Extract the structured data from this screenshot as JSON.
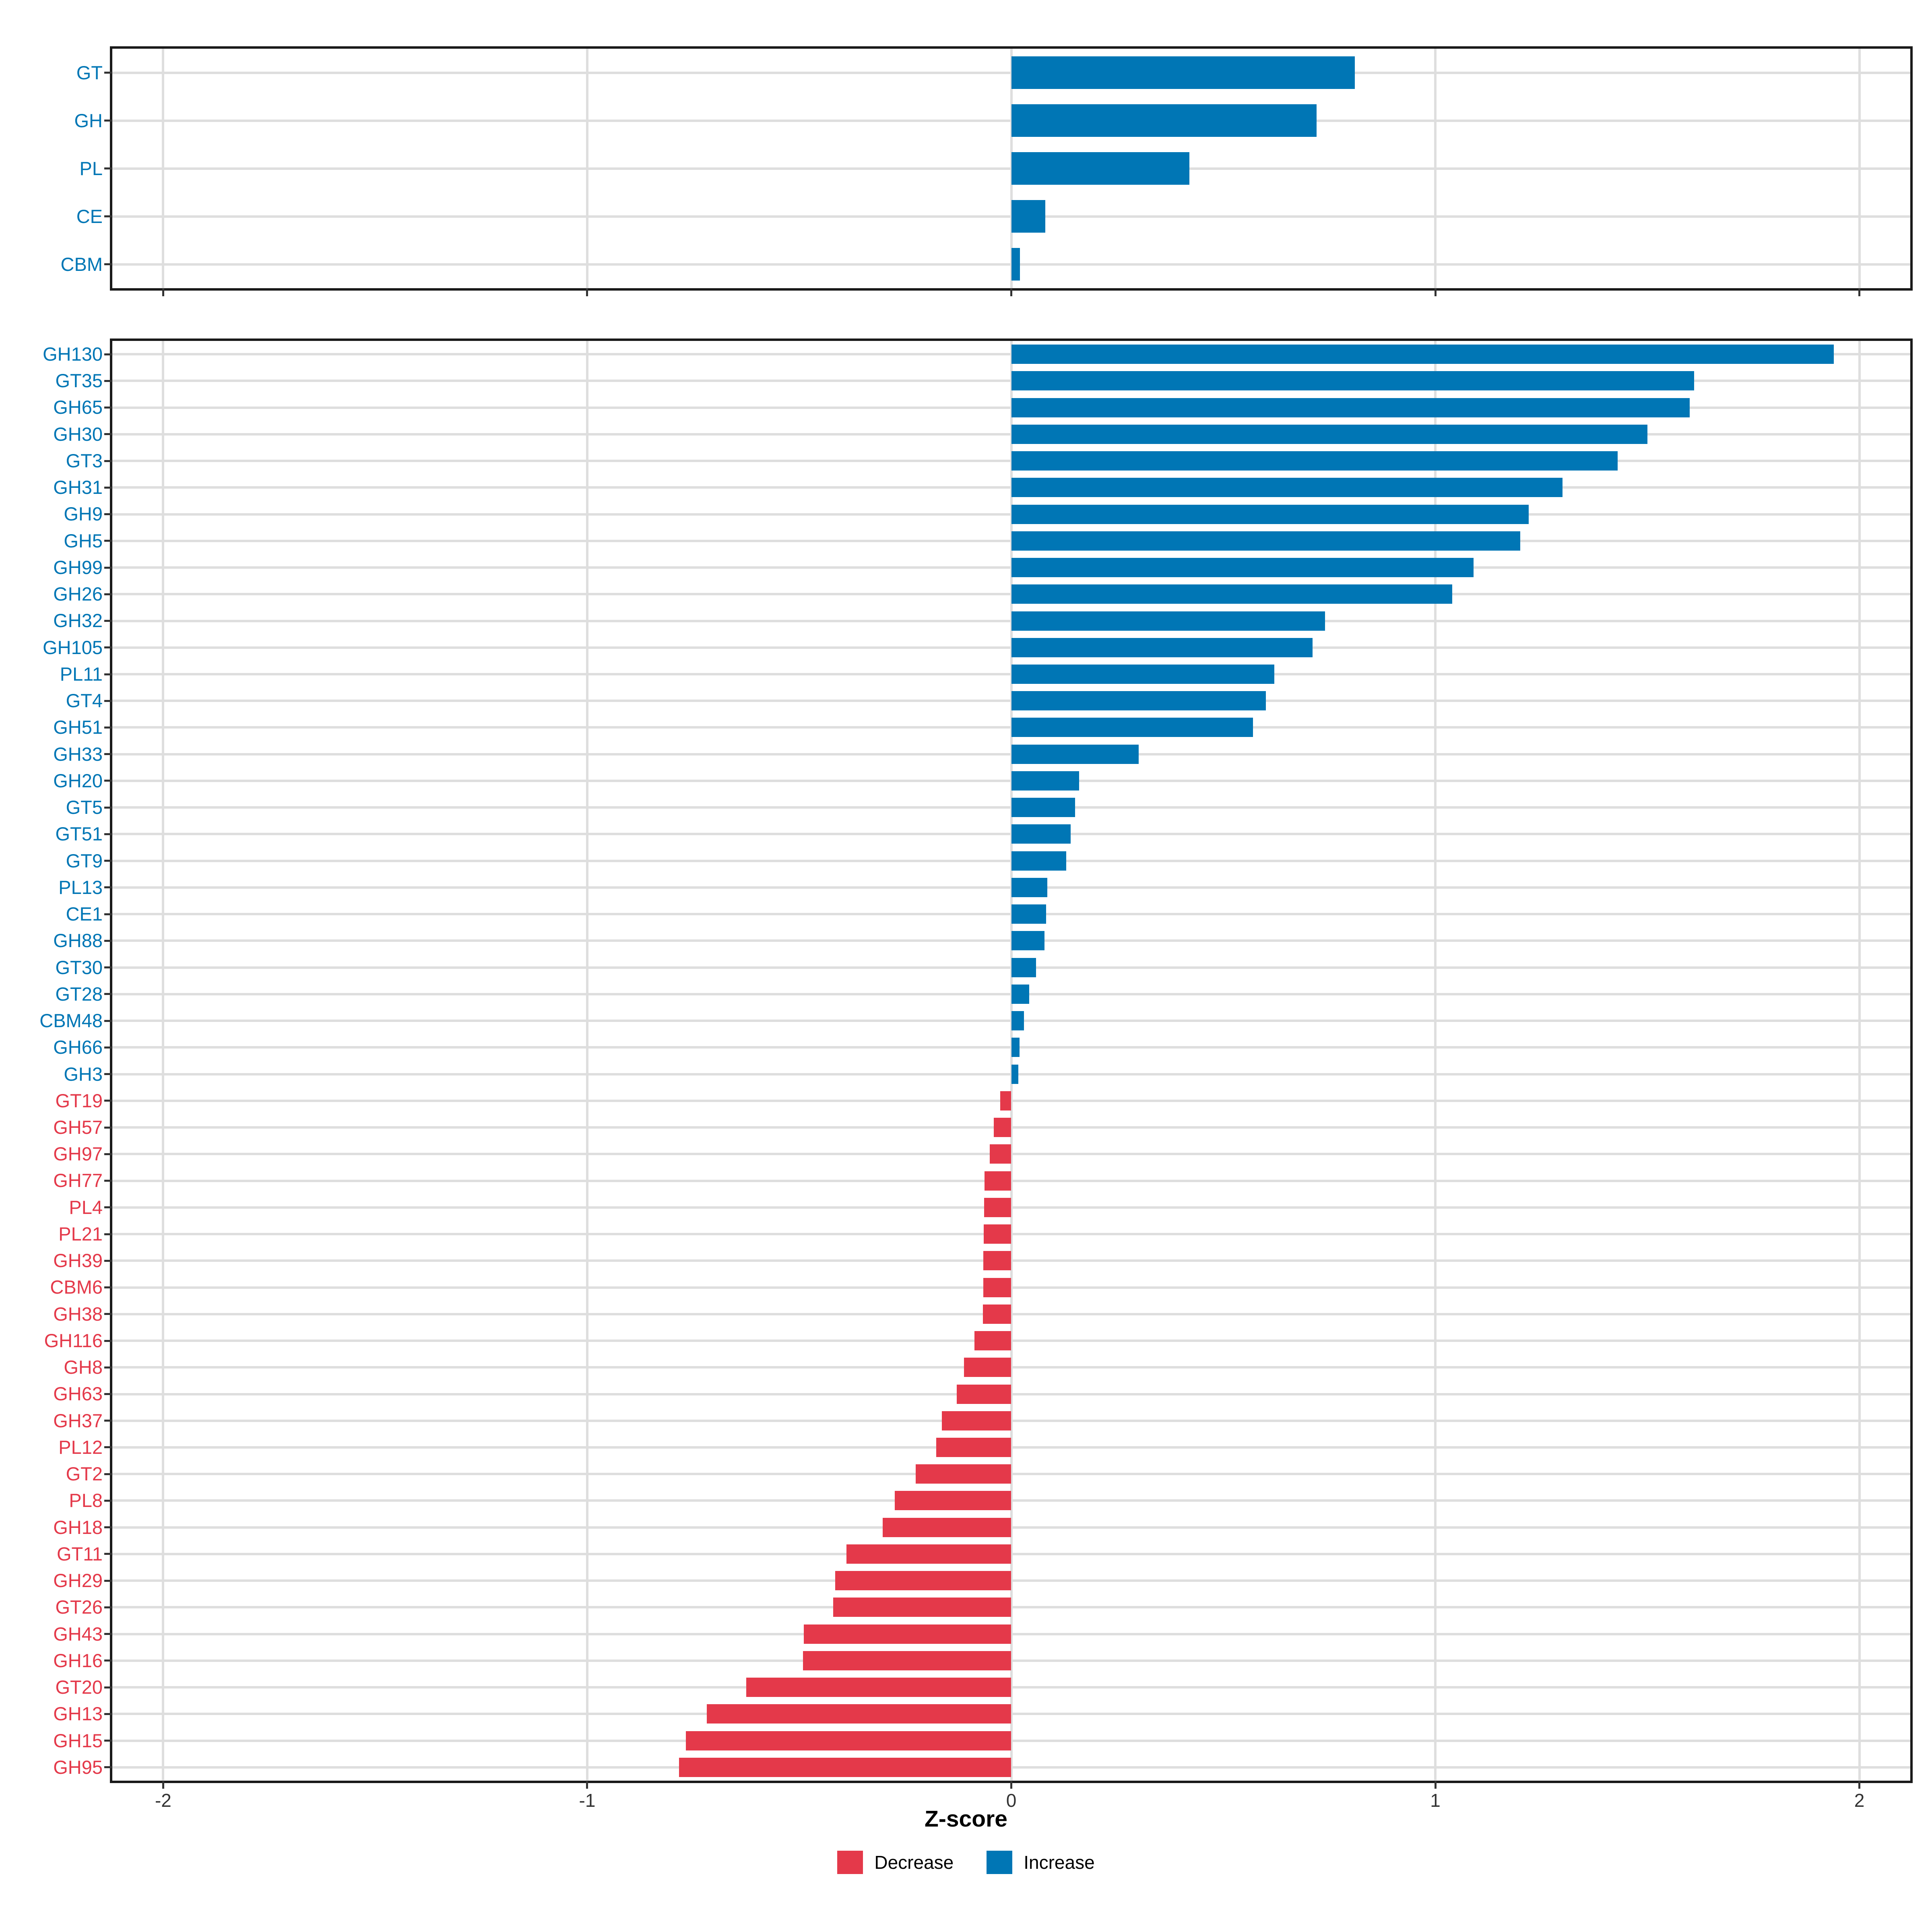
{
  "x_axis": {
    "title": "Z-score",
    "ticks": [
      -2,
      -1,
      0,
      1,
      2
    ],
    "tick_labels": [
      "-2",
      "-1",
      "0",
      "1",
      "2"
    ],
    "range": [
      -2.12,
      2.12
    ]
  },
  "legend": {
    "items": [
      {
        "label": "Decrease",
        "color_key": "decrease"
      },
      {
        "label": "Increase",
        "color_key": "increase"
      }
    ]
  },
  "colors": {
    "increase": "#0076B5",
    "decrease": "#E4394A",
    "grid": "#DEDEDE",
    "tick": "#333333",
    "tick_label": "#333333",
    "border": "#1A1A1A"
  },
  "chart_data": [
    {
      "id": "level",
      "type": "bar",
      "orientation": "horizontal",
      "categories": [
        "GT",
        "GH",
        "PL",
        "CE",
        "CBM"
      ],
      "values": [
        0.81,
        0.72,
        0.42,
        0.08,
        0.02
      ],
      "xlim": [
        -2.12,
        2.12
      ],
      "grid": true,
      "x_tick_labels_visible": false
    },
    {
      "id": "family",
      "type": "bar",
      "orientation": "horizontal",
      "categories": [
        "GH130",
        "GT35",
        "GH65",
        "GH30",
        "GT3",
        "GH31",
        "GH9",
        "GH5",
        "GH99",
        "GH26",
        "GH32",
        "GH105",
        "PL11",
        "GT4",
        "GH51",
        "GH33",
        "GH20",
        "GT5",
        "GT51",
        "GT9",
        "PL13",
        "CE1",
        "GH88",
        "GT30",
        "GT28",
        "CBM48",
        "GH66",
        "GH3",
        "GT19",
        "GH57",
        "GH97",
        "GH77",
        "PL4",
        "PL21",
        "GH39",
        "CBM6",
        "GH38",
        "GH116",
        "GH8",
        "GH63",
        "GH37",
        "PL12",
        "GT2",
        "PL8",
        "GH18",
        "GT11",
        "GH29",
        "GT26",
        "GH43",
        "GH16",
        "GT20",
        "GH13",
        "GH15",
        "GH95"
      ],
      "values": [
        1.94,
        1.61,
        1.6,
        1.5,
        1.43,
        1.3,
        1.22,
        1.2,
        1.09,
        1.04,
        0.74,
        0.71,
        0.62,
        0.6,
        0.57,
        0.3,
        0.16,
        0.15,
        0.14,
        0.13,
        0.085,
        0.082,
        0.078,
        0.058,
        0.042,
        0.03,
        0.019,
        0.017,
        -0.026,
        -0.041,
        -0.051,
        -0.063,
        -0.064,
        -0.065,
        -0.066,
        -0.066,
        -0.067,
        -0.087,
        -0.112,
        -0.129,
        -0.164,
        -0.177,
        -0.225,
        -0.275,
        -0.303,
        -0.389,
        -0.415,
        -0.42,
        -0.489,
        -0.491,
        -0.625,
        -0.718,
        -0.767,
        -0.784
      ],
      "xlim": [
        -2.12,
        2.12
      ],
      "grid": true,
      "x_tick_labels_visible": true
    }
  ]
}
